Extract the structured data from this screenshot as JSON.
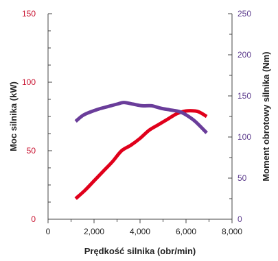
{
  "chart_data": {
    "type": "line",
    "title": "",
    "xlabel": "Prędkość silnika (obr/min)",
    "ylabel_left": "Moc silnika (kW)",
    "ylabel_right": "Moment obrotowy silnika (Nm)",
    "xlim": [
      0,
      8000
    ],
    "ylim_left": [
      0,
      150
    ],
    "ylim_right": [
      0,
      250
    ],
    "x_tick_labels": [
      "0",
      "2,000",
      "4,000",
      "6,000",
      "8,000"
    ],
    "x_tick_values": [
      0,
      2000,
      4000,
      6000,
      8000
    ],
    "y_left_tick_labels": [
      "0",
      "50",
      "100",
      "150"
    ],
    "y_left_tick_values": [
      0,
      50,
      100,
      150
    ],
    "y_right_tick_labels": [
      "0",
      "50",
      "100",
      "150",
      "200",
      "250"
    ],
    "y_right_tick_values": [
      0,
      50,
      100,
      150,
      200,
      250
    ],
    "grid": false,
    "legend": "none",
    "colors": {
      "power": "#e0001b",
      "torque": "#6a3d9a",
      "left_axis_labels": "#c8102e",
      "right_axis_labels": "#5b3a8c",
      "axis": "#444444"
    },
    "series": [
      {
        "axis": "left",
        "color": "#e0001b",
        "x": [
          1200,
          1600,
          2000,
          2400,
          2800,
          3200,
          3600,
          4000,
          4400,
          4800,
          5200,
          5600,
          6000,
          6400,
          6600,
          6900
        ],
        "values": [
          15,
          21,
          28,
          35,
          42,
          50,
          54,
          59,
          65,
          69,
          73,
          77,
          79,
          79,
          78,
          75
        ]
      },
      {
        "axis": "right",
        "color": "#6a3d9a",
        "x": [
          1200,
          1500,
          1800,
          2200,
          2600,
          3000,
          3300,
          3700,
          4100,
          4500,
          4900,
          5300,
          5700,
          6000,
          6400,
          6900
        ],
        "values": [
          119,
          126,
          130,
          134,
          137,
          140,
          142,
          140,
          138,
          138,
          135,
          133,
          131,
          127,
          119,
          105
        ]
      }
    ]
  }
}
